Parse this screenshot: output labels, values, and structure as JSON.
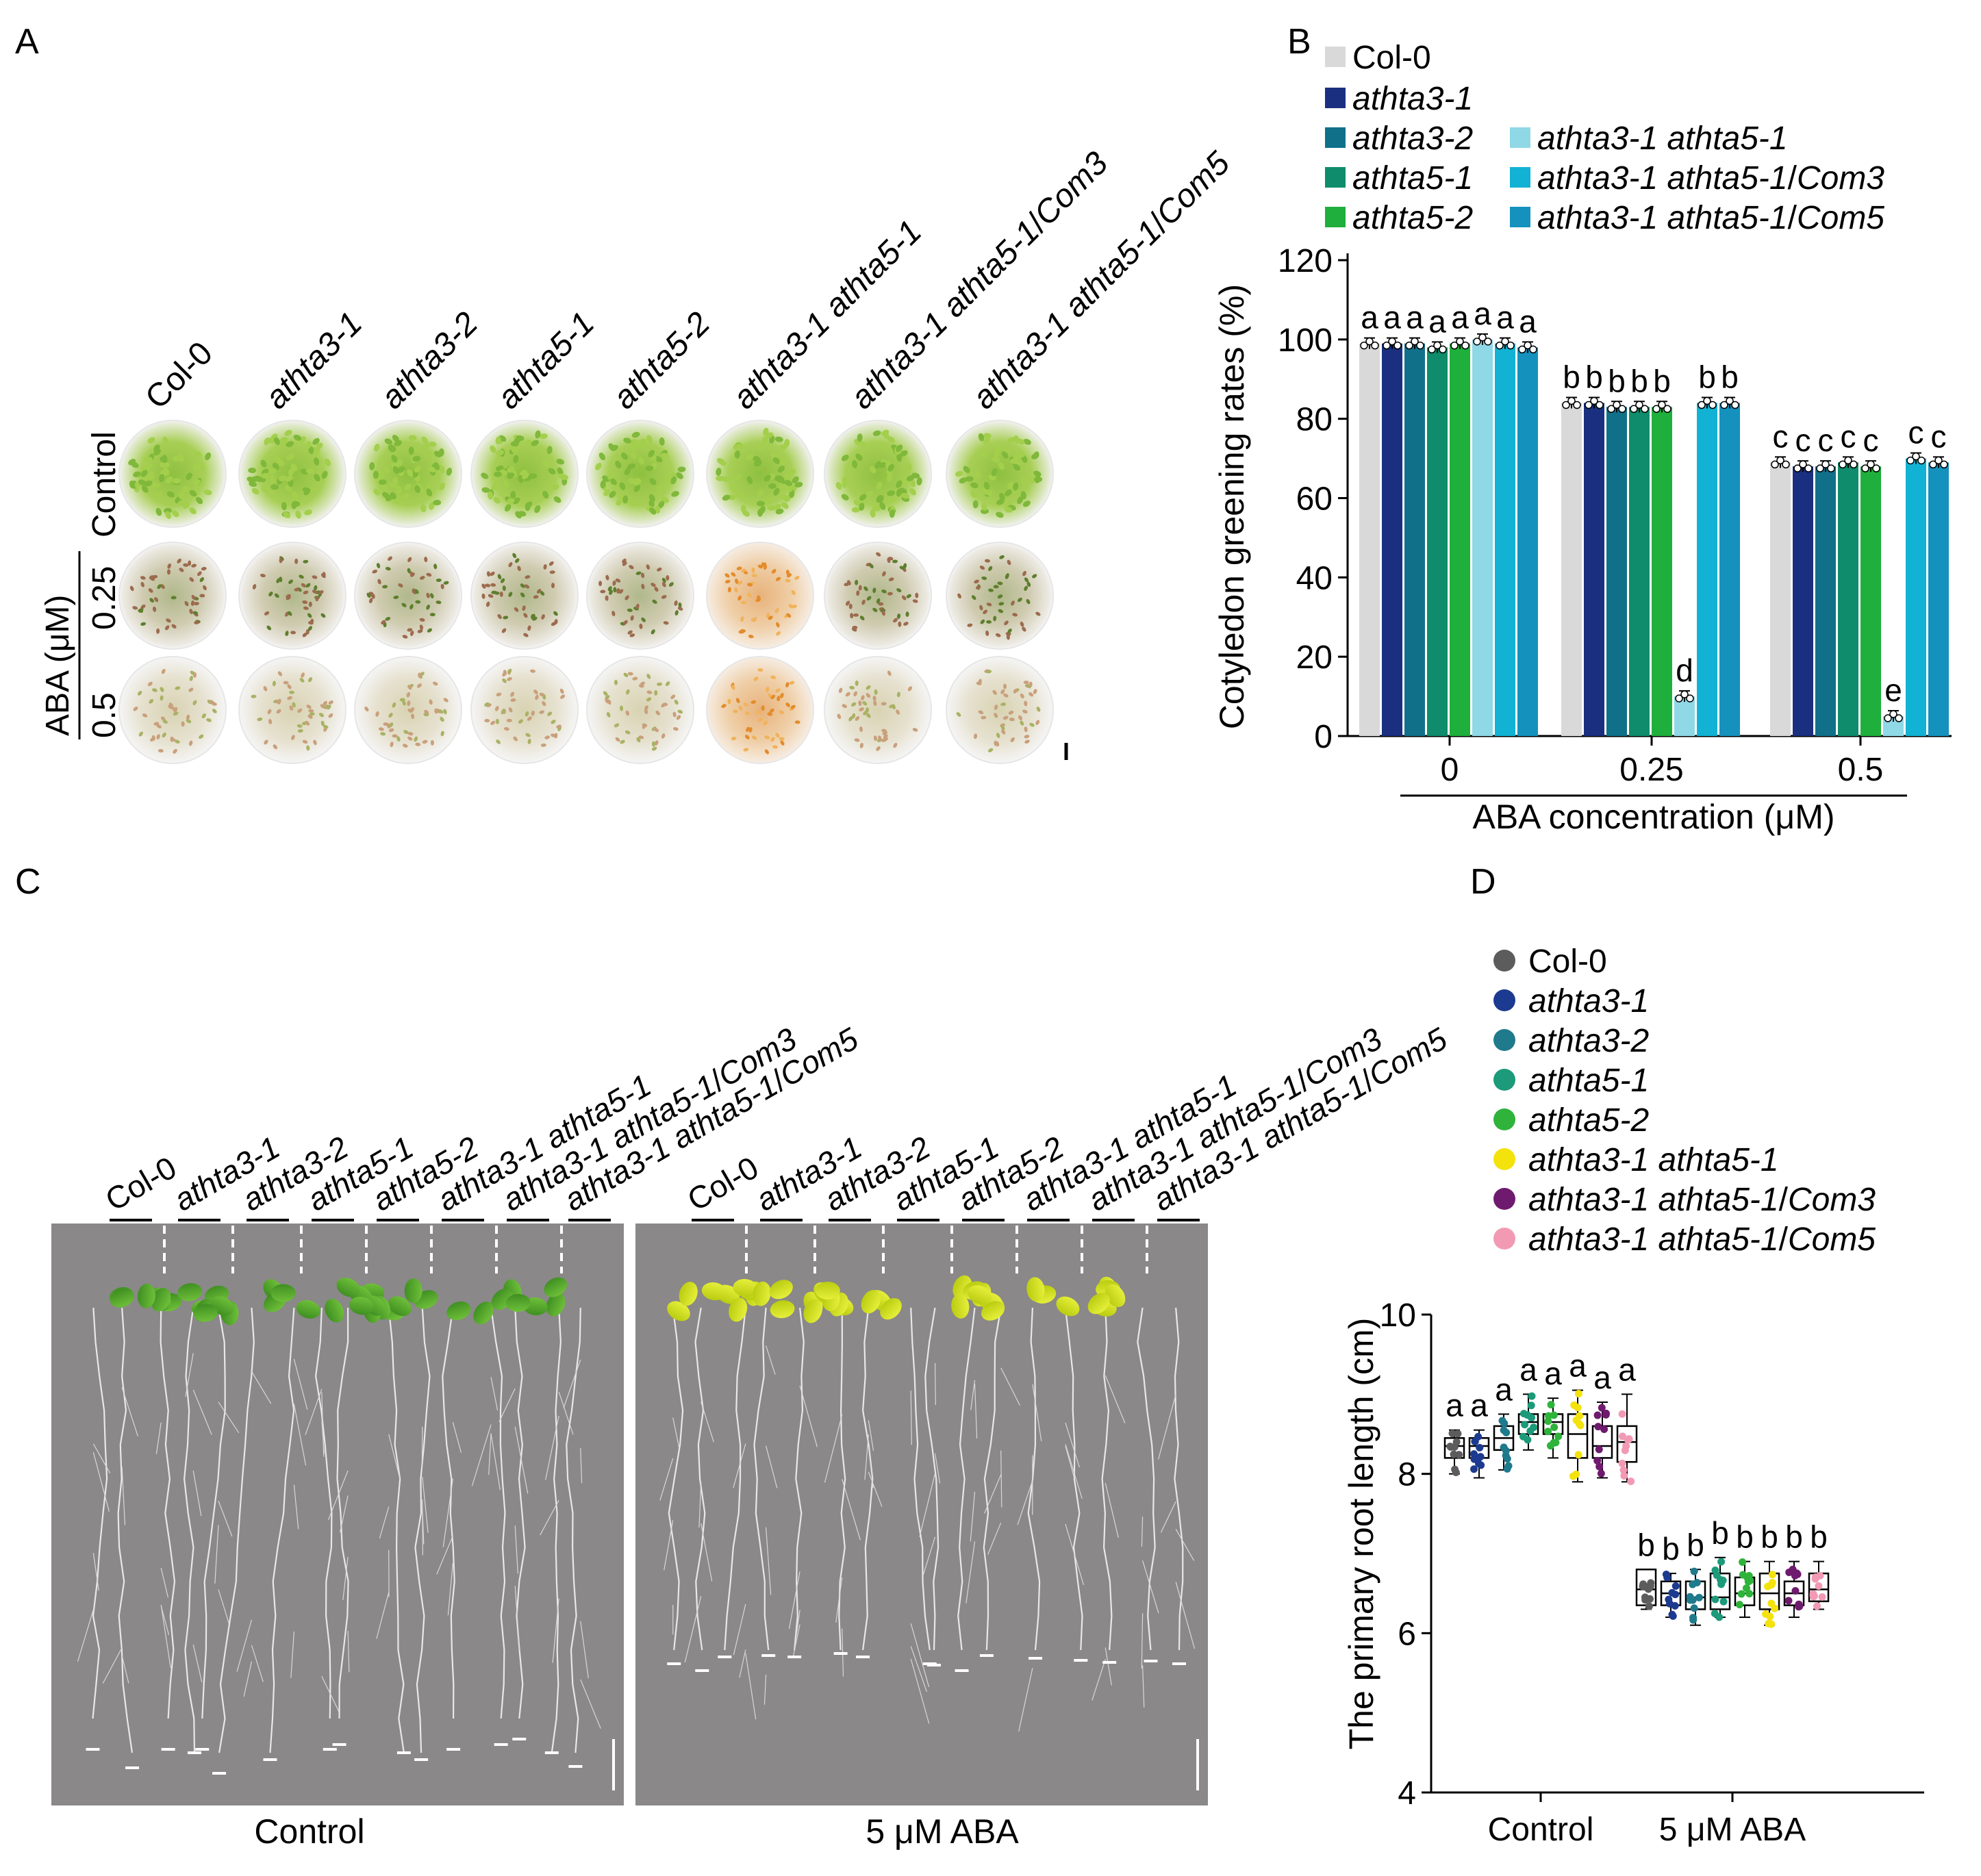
{
  "panel_labels": {
    "A": "A",
    "B": "B",
    "C": "C",
    "D": "D"
  },
  "genotypes": [
    "Col-0",
    "athta3-1",
    "athta3-2",
    "athta5-1",
    "athta5-2",
    "athta3-1 athta5-1",
    "athta3-1 athta5-1/Com3",
    "athta3-1 athta5-1/Com5"
  ],
  "panel_a": {
    "row_labels": [
      "Control",
      "0.25",
      "0.5"
    ],
    "aba_label": "ABA (μM)"
  },
  "panel_c": {
    "conditions": [
      "Control",
      "5 μM ABA"
    ]
  },
  "colors": {
    "b_bars": [
      "#d9d9d9",
      "#1a2f7f",
      "#10708a",
      "#0e8c6b",
      "#1faf3c",
      "#8fd8e6",
      "#11b2d3",
      "#1591bd"
    ],
    "d_points": [
      "#5c5c5c",
      "#1c3a8f",
      "#1f7a8c",
      "#1c9a7a",
      "#2fb33b",
      "#f4e20c",
      "#6e1a6e",
      "#f29ab4"
    ]
  },
  "chart_data": [
    {
      "type": "bar",
      "panel": "B",
      "categories": [
        "0",
        "0.25",
        "0.5"
      ],
      "xlabel": "ABA concentration (μM)",
      "ylabel": "Cotyledon greening rates (%)",
      "ylim": [
        0,
        120
      ],
      "yticks": [
        "0",
        "20",
        "40",
        "60",
        "80",
        "100",
        "120"
      ],
      "legend": [
        "Col-0",
        "athta3-1",
        "athta3-2",
        "athta5-1",
        "athta5-2",
        "athta3-1 athta5-1",
        "athta3-1 athta5-1/Com3",
        "athta3-1 athta5-1/Com5"
      ],
      "series": [
        {
          "name": "Col-0",
          "values": [
            99,
            84,
            69
          ],
          "letters": [
            "a",
            "b",
            "c"
          ]
        },
        {
          "name": "athta3-1",
          "values": [
            99,
            84,
            68
          ],
          "letters": [
            "a",
            "b",
            "c"
          ]
        },
        {
          "name": "athta3-2",
          "values": [
            99,
            83,
            68
          ],
          "letters": [
            "a",
            "b",
            "c"
          ]
        },
        {
          "name": "athta5-1",
          "values": [
            98,
            83,
            69
          ],
          "letters": [
            "a",
            "b",
            "c"
          ]
        },
        {
          "name": "athta5-2",
          "values": [
            99,
            83,
            68
          ],
          "letters": [
            "a",
            "b",
            "c"
          ]
        },
        {
          "name": "athta3-1 athta5-1",
          "values": [
            100,
            10,
            5
          ],
          "letters": [
            "a",
            "d",
            "e"
          ]
        },
        {
          "name": "athta3-1 athta5-1/Com3",
          "values": [
            99,
            84,
            70
          ],
          "letters": [
            "a",
            "b",
            "c"
          ]
        },
        {
          "name": "athta3-1 athta5-1/Com5",
          "values": [
            98,
            84,
            69
          ],
          "letters": [
            "a",
            "b",
            "c"
          ]
        }
      ]
    },
    {
      "type": "box",
      "panel": "D",
      "categories": [
        "Control",
        "5 μM ABA"
      ],
      "ylabel": "The primary root length (cm)",
      "ylim": [
        4,
        10
      ],
      "yticks": [
        "4",
        "6",
        "8",
        "10"
      ],
      "legend": [
        "Col-0",
        "athta3-1",
        "athta3-2",
        "athta5-1",
        "athta5-2",
        "athta3-1 athta5-1",
        "athta3-1 athta5-1/Com3",
        "athta3-1 athta5-1/Com5"
      ],
      "series": [
        {
          "name": "Col-0",
          "median": [
            8.35,
            6.55
          ],
          "q1": [
            8.2,
            6.35
          ],
          "q3": [
            8.45,
            6.8
          ],
          "min": [
            8.0,
            6.3
          ],
          "max": [
            8.55,
            6.8
          ],
          "letters": [
            "a",
            "b"
          ]
        },
        {
          "name": "athta3-1",
          "median": [
            8.35,
            6.5
          ],
          "q1": [
            8.2,
            6.35
          ],
          "q3": [
            8.45,
            6.65
          ],
          "min": [
            7.95,
            6.2
          ],
          "max": [
            8.55,
            6.75
          ],
          "letters": [
            "a",
            "b"
          ]
        },
        {
          "name": "athta3-2",
          "median": [
            8.45,
            6.45
          ],
          "q1": [
            8.3,
            6.3
          ],
          "q3": [
            8.6,
            6.65
          ],
          "min": [
            8.05,
            6.1
          ],
          "max": [
            8.75,
            6.8
          ],
          "letters": [
            "a",
            "b"
          ]
        },
        {
          "name": "athta5-1",
          "median": [
            8.65,
            6.45
          ],
          "q1": [
            8.5,
            6.3
          ],
          "q3": [
            8.75,
            6.75
          ],
          "min": [
            8.3,
            6.2
          ],
          "max": [
            9.0,
            6.95
          ],
          "letters": [
            "a",
            "b"
          ]
        },
        {
          "name": "athta5-2",
          "median": [
            8.65,
            6.5
          ],
          "q1": [
            8.5,
            6.35
          ],
          "q3": [
            8.75,
            6.7
          ],
          "min": [
            8.2,
            6.2
          ],
          "max": [
            8.95,
            6.9
          ],
          "letters": [
            "a",
            "b"
          ]
        },
        {
          "name": "athta3-1 athta5-1",
          "median": [
            8.5,
            6.5
          ],
          "q1": [
            8.2,
            6.3
          ],
          "q3": [
            8.75,
            6.75
          ],
          "min": [
            7.9,
            6.1
          ],
          "max": [
            9.05,
            6.9
          ],
          "letters": [
            "a",
            "b"
          ]
        },
        {
          "name": "athta3-1 athta5-1/Com3",
          "median": [
            8.35,
            6.5
          ],
          "q1": [
            8.2,
            6.35
          ],
          "q3": [
            8.6,
            6.65
          ],
          "min": [
            7.95,
            6.2
          ],
          "max": [
            8.9,
            6.9
          ],
          "letters": [
            "a",
            "b"
          ]
        },
        {
          "name": "athta3-1 athta5-1/Com5",
          "median": [
            8.4,
            6.55
          ],
          "q1": [
            8.15,
            6.4
          ],
          "q3": [
            8.6,
            6.75
          ],
          "min": [
            7.9,
            6.3
          ],
          "max": [
            9.0,
            6.9
          ],
          "letters": [
            "a",
            "b"
          ]
        }
      ]
    }
  ]
}
